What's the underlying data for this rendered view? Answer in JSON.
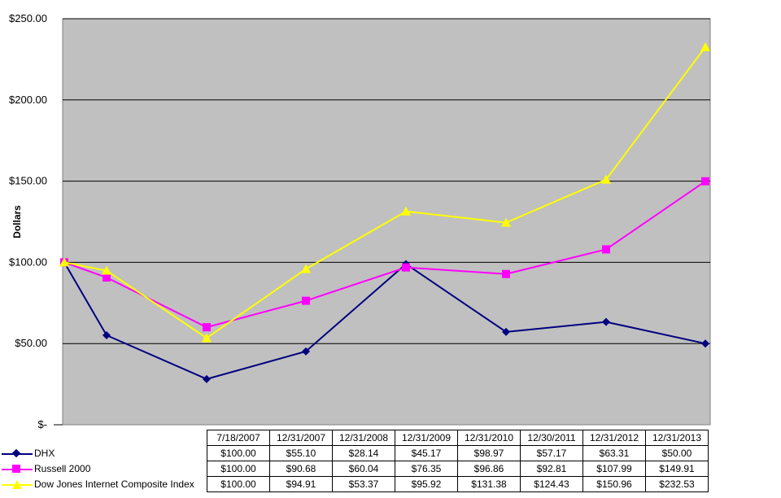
{
  "chart_data": {
    "type": "line",
    "ylabel": "Dollars",
    "ylim": [
      0,
      250
    ],
    "y_ticks": [
      "$-",
      "$50.00",
      "$100.00",
      "$150.00",
      "$200.00",
      "$250.00"
    ],
    "y_tick_values": [
      0,
      50,
      100,
      150,
      200,
      250
    ],
    "categories": [
      "7/18/2007",
      "12/31/2007",
      "12/31/2008",
      "12/31/2009",
      "12/31/2010",
      "12/30/2011",
      "12/31/2012",
      "12/31/2013"
    ],
    "grid": true,
    "legend": "table-bottom",
    "series": [
      {
        "name": "DHX",
        "color": "#000080",
        "marker": "diamond",
        "x_positions": [
          0,
          0.45,
          1.45,
          2.45,
          3.45,
          4.45,
          5.45,
          6.45
        ],
        "values": [
          100.0,
          55.1,
          28.14,
          45.17,
          98.97,
          57.17,
          63.31,
          50.0
        ],
        "labels": [
          "$100.00",
          "$55.10",
          "$28.14",
          "$45.17",
          "$98.97",
          "$57.17",
          "$63.31",
          "$50.00"
        ]
      },
      {
        "name": "Russell 2000",
        "color": "#FF00FF",
        "marker": "square",
        "x_positions": [
          0,
          0.45,
          1.45,
          2.45,
          3.45,
          4.45,
          5.45,
          6.45
        ],
        "values": [
          100.0,
          90.68,
          60.04,
          76.35,
          96.86,
          92.81,
          107.99,
          149.91
        ],
        "labels": [
          "$100.00",
          "$90.68",
          "$60.04",
          "$76.35",
          "$96.86",
          "$92.81",
          "$107.99",
          "$149.91"
        ]
      },
      {
        "name": "Dow Jones Internet Composite Index",
        "color": "#FFFF00",
        "marker": "triangle",
        "x_positions": [
          0,
          0.45,
          1.45,
          2.45,
          3.45,
          4.45,
          5.45,
          6.45
        ],
        "values": [
          100.0,
          94.91,
          53.37,
          95.92,
          131.38,
          124.43,
          150.96,
          232.53
        ],
        "labels": [
          "$100.00",
          "$94.91",
          "$53.37",
          "$95.92",
          "$131.38",
          "$124.43",
          "$150.96",
          "$232.53"
        ]
      }
    ],
    "colors": {
      "plot_background": "#C0C0C0",
      "grid": "#000000"
    }
  }
}
